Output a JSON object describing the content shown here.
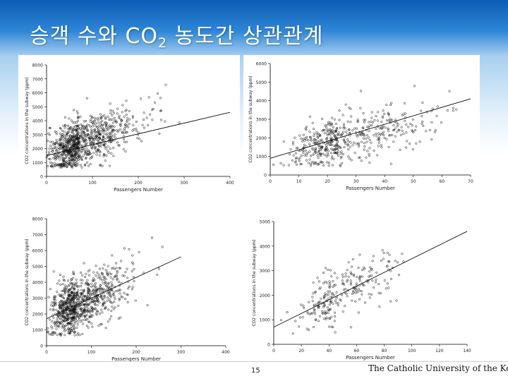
{
  "slide": {
    "title_main": "승객 수와 CO",
    "title_sub": "2",
    "title_tail": " 농도간 상관관계",
    "page_number": "15",
    "university": "The Catholic University of the Korea",
    "header_color": "#0b5cb5"
  },
  "chart_data": [
    {
      "type": "scatter",
      "title": "",
      "xlabel": "Passengers Number",
      "ylabel": "CO2 concentrations in the subway (ppm)",
      "xlim": [
        0,
        400
      ],
      "ylim": [
        0,
        8000
      ],
      "xticks": [
        0,
        100,
        200,
        300,
        400
      ],
      "yticks": [
        0,
        1000,
        2000,
        3000,
        4000,
        5000,
        6000,
        7000,
        8000
      ],
      "cluster": {
        "x_mean": 70,
        "x_sd": 50,
        "x_max": 360,
        "y_base": 1500,
        "y_slope": 12,
        "y_sd": 900,
        "n": 900
      },
      "trendline": {
        "x": [
          0,
          400
        ],
        "y": [
          1500,
          4600
        ]
      },
      "grid": false
    },
    {
      "type": "scatter",
      "title": "",
      "xlabel": "Passengers Number",
      "ylabel": "CO2 concentrations in the subway (ppm)",
      "xlim": [
        0,
        70
      ],
      "ylim": [
        0,
        6000
      ],
      "xticks": [
        0,
        10,
        20,
        30,
        40,
        50,
        60,
        70
      ],
      "yticks": [
        0,
        1000,
        2000,
        3000,
        4000,
        5000,
        6000
      ],
      "cluster": {
        "x_mean": 24,
        "x_sd": 14,
        "x_max": 66,
        "y_base": 900,
        "y_slope": 38,
        "y_sd": 650,
        "n": 500
      },
      "trendline": {
        "x": [
          0,
          70
        ],
        "y": [
          900,
          4100
        ]
      },
      "grid": false
    },
    {
      "type": "scatter",
      "title": "",
      "xlabel": "Passengers Number",
      "ylabel": "CO2 concentrations in the subway (ppm)",
      "xlim": [
        0,
        400
      ],
      "ylim": [
        0,
        8000
      ],
      "xticks": [
        0,
        100,
        200,
        300,
        400
      ],
      "yticks": [
        0,
        1000,
        2000,
        3000,
        4000,
        5000,
        6000,
        7000,
        8000
      ],
      "cluster": {
        "x_mean": 65,
        "x_sd": 45,
        "x_max": 330,
        "y_base": 1700,
        "y_slope": 13,
        "y_sd": 850,
        "n": 900
      },
      "trendline": {
        "x": [
          0,
          300
        ],
        "y": [
          1700,
          5600
        ]
      },
      "grid": false
    },
    {
      "type": "scatter",
      "title": "",
      "xlabel": "Passengers Number",
      "ylabel": "CO2 concentrations in the subway (ppm)",
      "xlim": [
        0,
        140
      ],
      "ylim": [
        0,
        5000
      ],
      "xticks": [
        0,
        20,
        40,
        60,
        80,
        100,
        120,
        140
      ],
      "yticks": [
        0,
        1000,
        2000,
        3000,
        4000,
        5000
      ],
      "cluster": {
        "x_mean": 45,
        "x_sd": 20,
        "x_max": 95,
        "y_base": 700,
        "y_slope": 28,
        "y_sd": 550,
        "n": 250
      },
      "trendline": {
        "x": [
          0,
          140
        ],
        "y": [
          700,
          4600
        ]
      },
      "grid": false
    }
  ]
}
